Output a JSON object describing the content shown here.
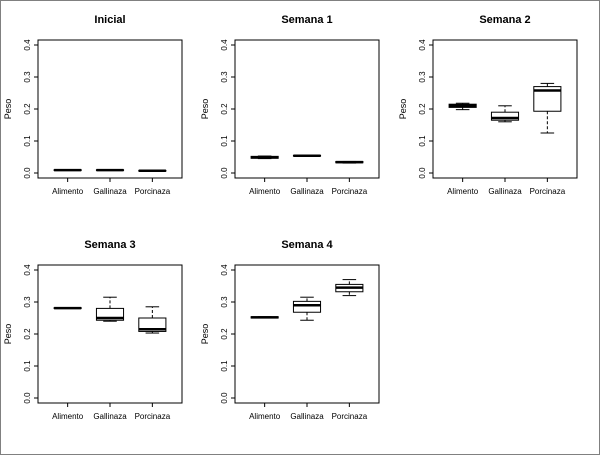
{
  "chart_data": [
    {
      "type": "boxplot",
      "title": "Inicial",
      "ylabel": "Peso",
      "ylim": [
        0,
        0.4
      ],
      "yticks": [
        "0.0",
        "0.1",
        "0.2",
        "0.3",
        "0.4"
      ],
      "categories": [
        "Alimento",
        "Gallinaza",
        "Porcinaza"
      ],
      "boxes": [
        {
          "min": 0.008,
          "q1": 0.008,
          "median": 0.009,
          "q3": 0.01,
          "max": 0.01
        },
        {
          "min": 0.008,
          "q1": 0.008,
          "median": 0.009,
          "q3": 0.01,
          "max": 0.01
        },
        {
          "min": 0.006,
          "q1": 0.006,
          "median": 0.007,
          "q3": 0.008,
          "max": 0.008
        }
      ]
    },
    {
      "type": "boxplot",
      "title": "Semana 1",
      "ylabel": "Peso",
      "ylim": [
        0,
        0.4
      ],
      "yticks": [
        "0.0",
        "0.1",
        "0.2",
        "0.3",
        "0.4"
      ],
      "categories": [
        "Alimento",
        "Gallinaza",
        "Porcinaza"
      ],
      "boxes": [
        {
          "min": 0.045,
          "q1": 0.046,
          "median": 0.049,
          "q3": 0.052,
          "max": 0.053
        },
        {
          "min": 0.052,
          "q1": 0.053,
          "median": 0.054,
          "q3": 0.055,
          "max": 0.055
        },
        {
          "min": 0.031,
          "q1": 0.032,
          "median": 0.034,
          "q3": 0.036,
          "max": 0.036
        }
      ]
    },
    {
      "type": "boxplot",
      "title": "Semana 2",
      "ylabel": "Peso",
      "ylim": [
        0,
        0.4
      ],
      "yticks": [
        "0.0",
        "0.1",
        "0.2",
        "0.3",
        "0.4"
      ],
      "categories": [
        "Alimento",
        "Gallinaza",
        "Porcinaza"
      ],
      "boxes": [
        {
          "min": 0.198,
          "q1": 0.205,
          "median": 0.21,
          "q3": 0.215,
          "max": 0.218
        },
        {
          "min": 0.16,
          "q1": 0.165,
          "median": 0.172,
          "q3": 0.19,
          "max": 0.21
        },
        {
          "min": 0.125,
          "q1": 0.193,
          "median": 0.258,
          "q3": 0.27,
          "max": 0.28
        }
      ]
    },
    {
      "type": "boxplot",
      "title": "Semana 3",
      "ylabel": "Peso",
      "ylim": [
        0,
        0.4
      ],
      "yticks": [
        "0.0",
        "0.1",
        "0.2",
        "0.3",
        "0.4"
      ],
      "categories": [
        "Alimento",
        "Gallinaza",
        "Porcinaza"
      ],
      "boxes": [
        {
          "min": 0.28,
          "q1": 0.28,
          "median": 0.281,
          "q3": 0.282,
          "max": 0.282
        },
        {
          "min": 0.24,
          "q1": 0.243,
          "median": 0.25,
          "q3": 0.28,
          "max": 0.315
        },
        {
          "min": 0.203,
          "q1": 0.208,
          "median": 0.215,
          "q3": 0.25,
          "max": 0.285
        }
      ]
    },
    {
      "type": "boxplot",
      "title": "Semana 4",
      "ylabel": "Peso",
      "ylim": [
        0,
        0.4
      ],
      "yticks": [
        "0.0",
        "0.1",
        "0.2",
        "0.3",
        "0.4"
      ],
      "categories": [
        "Alimento",
        "Gallinaza",
        "Porcinaza"
      ],
      "boxes": [
        {
          "min": 0.25,
          "q1": 0.25,
          "median": 0.252,
          "q3": 0.254,
          "max": 0.254
        },
        {
          "min": 0.243,
          "q1": 0.268,
          "median": 0.29,
          "q3": 0.302,
          "max": 0.315
        },
        {
          "min": 0.32,
          "q1": 0.332,
          "median": 0.345,
          "q3": 0.355,
          "max": 0.37
        }
      ]
    }
  ]
}
